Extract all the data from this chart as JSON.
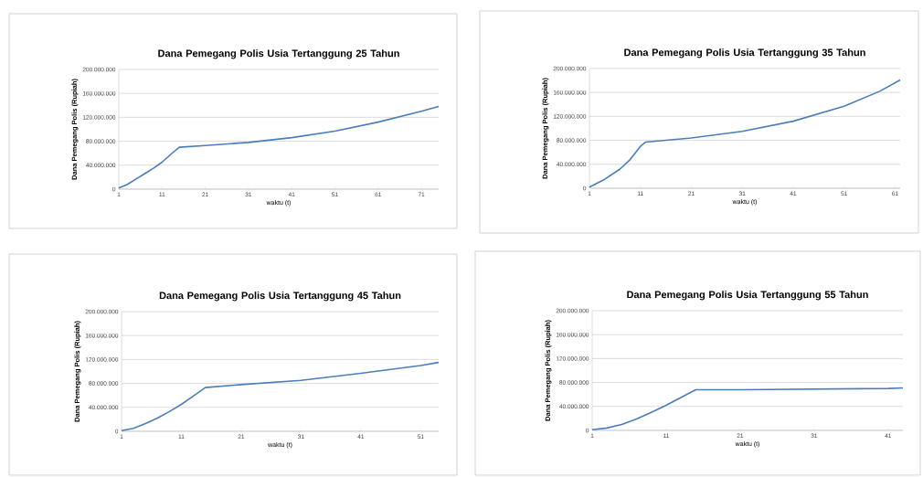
{
  "chart_data": [
    {
      "type": "line",
      "title": "Dana Pemegang Polis Usia Tertanggung 25 Tahun",
      "xlabel": "waktu (t)",
      "ylabel": "Dana Pemegang Polis (Rupiah)",
      "color": "#4a7ebb",
      "grid": "y",
      "x": [
        1,
        3,
        5,
        7,
        9,
        11,
        13,
        15,
        21,
        31,
        41,
        51,
        61,
        71,
        75
      ],
      "values": [
        2000000,
        8000000,
        17000000,
        26000000,
        35000000,
        45000000,
        58000000,
        70000000,
        73000000,
        78000000,
        86000000,
        97000000,
        112000000,
        130000000,
        138000000
      ],
      "xlim": [
        1,
        75
      ],
      "ylim": [
        0,
        200000000
      ],
      "xticks": [
        1,
        11,
        21,
        31,
        41,
        51,
        61,
        71
      ],
      "yticks": [
        0,
        {
          "value": 40000000,
          "label": "40.000.000"
        },
        {
          "value": 80000000,
          "label": "80.000.000"
        },
        {
          "value": 120000000,
          "label": "120.000.000"
        },
        {
          "value": 160000000,
          "label": "160.000.000"
        },
        {
          "value": 200000000,
          "label": "200.000.000"
        }
      ]
    },
    {
      "type": "line",
      "title": "Dana Pemegang Polis Usia Tertanggung 35 Tahun",
      "xlabel": "waktu (t)",
      "ylabel": "Dana Pemegang Polis (Rupiah)",
      "color": "#4a7ebb",
      "grid": "y",
      "x": [
        1,
        4,
        7,
        9,
        11,
        12,
        21,
        31,
        41,
        51,
        58,
        62
      ],
      "values": [
        2000000,
        15000000,
        32000000,
        48000000,
        70000000,
        77000000,
        84000000,
        95000000,
        112000000,
        137000000,
        162000000,
        181000000
      ],
      "xlim": [
        1,
        62
      ],
      "ylim": [
        0,
        200000000
      ],
      "xticks": [
        1,
        11,
        21,
        31,
        41,
        51,
        61
      ],
      "yticks": [
        0,
        {
          "value": 40000000,
          "label": "40.000.000"
        },
        {
          "value": 80000000,
          "label": "80.000.000"
        },
        {
          "value": 120000000,
          "label": "120.000.000"
        },
        {
          "value": 160000000,
          "label": "160.000.000"
        },
        {
          "value": 200000000,
          "label": "200.000.000"
        }
      ]
    },
    {
      "type": "line",
      "title": "Dana Pemegang Polis Usia Tertanggung 45 Tahun",
      "xlabel": "waktu (t)",
      "ylabel": "Dana Pemegang Polis (Rupiah)",
      "color": "#4a7ebb",
      "grid": "y",
      "x": [
        1,
        3,
        5,
        7,
        9,
        11,
        13,
        15,
        21,
        31,
        41,
        51,
        54
      ],
      "values": [
        1000000,
        5000000,
        13000000,
        22000000,
        33000000,
        45000000,
        59000000,
        73000000,
        78000000,
        85000000,
        97000000,
        110000000,
        115000000
      ],
      "xlim": [
        1,
        54
      ],
      "ylim": [
        0,
        200000000
      ],
      "xticks": [
        1,
        11,
        21,
        31,
        41,
        51
      ],
      "yticks": [
        0,
        {
          "value": 40000000,
          "label": "40.000.000"
        },
        {
          "value": 80000000,
          "label": "80.000.000"
        },
        {
          "value": 120000000,
          "label": "120.000.000"
        },
        {
          "value": 160000000,
          "label": "160.000.000"
        },
        {
          "value": 200000000,
          "label": "200.000.000"
        }
      ]
    },
    {
      "type": "line",
      "title": "Dana Pemegang Polis Usia Tertanggung 55 Tahun",
      "xlabel": "waktu (t)",
      "ylabel": "Dana Pemegang Polis (Rupiah)",
      "color": "#4a7ebb",
      "grid": "y",
      "x": [
        1,
        3,
        5,
        7,
        9,
        11,
        13,
        15,
        21,
        31,
        41,
        43
      ],
      "values": [
        1000000,
        4000000,
        10000000,
        19000000,
        30000000,
        42000000,
        55000000,
        68000000,
        68000000,
        69000000,
        70000000,
        71000000
      ],
      "xlim": [
        1,
        43
      ],
      "ylim": [
        0,
        200000000
      ],
      "xticks": [
        1,
        11,
        21,
        31,
        41
      ],
      "yticks": [
        0,
        {
          "value": 40000000,
          "label": "40.000.000"
        },
        {
          "value": 80000000,
          "label": "80.000.000"
        },
        {
          "value": 120000000,
          "label": "120.000.000"
        },
        {
          "value": 160000000,
          "label": "160.000.000"
        },
        {
          "value": 200000000,
          "label": "200.000.000"
        }
      ]
    }
  ]
}
